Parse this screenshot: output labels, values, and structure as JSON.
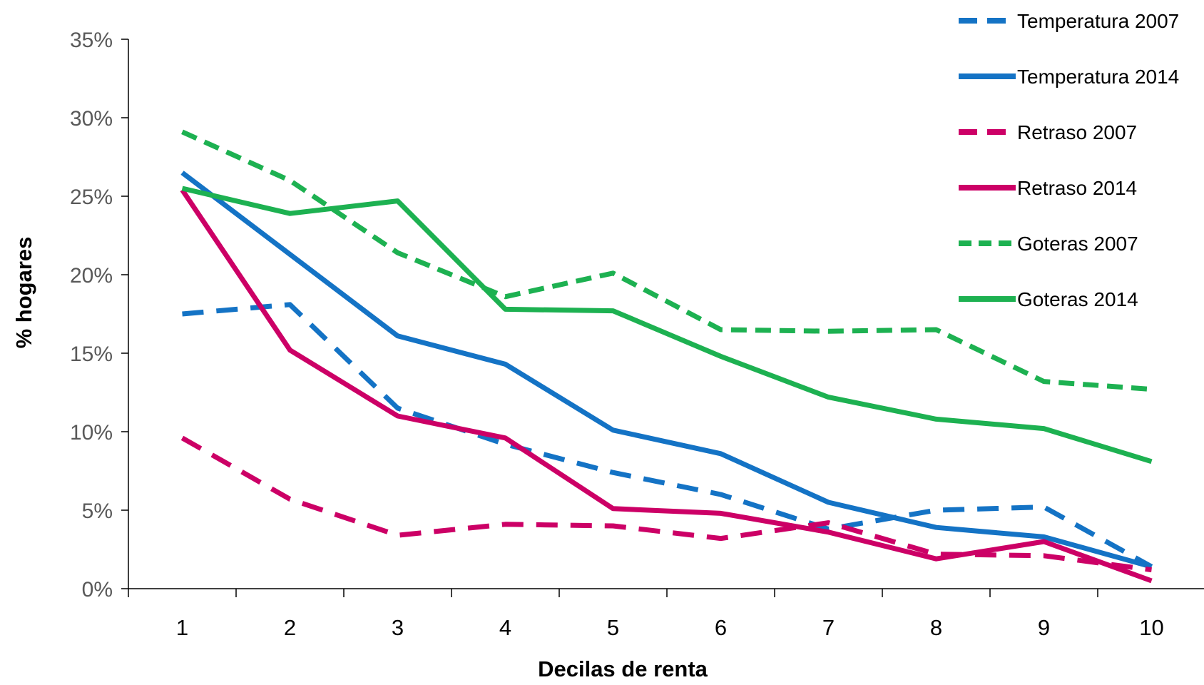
{
  "chart_data": {
    "type": "line",
    "xlabel": "Decilas de renta",
    "ylabel": "% hogares",
    "categories": [
      "1",
      "2",
      "3",
      "4",
      "5",
      "6",
      "7",
      "8",
      "9",
      "10"
    ],
    "y_ticks": [
      "0%",
      "5%",
      "10%",
      "15%",
      "20%",
      "25%",
      "30%",
      "35%"
    ],
    "ylim": [
      0,
      35
    ],
    "grid": false,
    "legend_position": "top-right",
    "series": [
      {
        "name": "Temperatura 2007",
        "color": "#1473C5",
        "style": "dashed",
        "values": [
          17.5,
          18.1,
          11.5,
          9.2,
          7.4,
          6.0,
          3.8,
          5.0,
          5.2,
          1.4
        ]
      },
      {
        "name": "Temperatura 2014",
        "color": "#1473C5",
        "style": "solid",
        "values": [
          26.5,
          21.3,
          16.1,
          14.3,
          10.1,
          8.6,
          5.5,
          3.9,
          3.3,
          1.4
        ]
      },
      {
        "name": "Retraso 2007",
        "color": "#CC0066",
        "style": "dashed",
        "values": [
          9.6,
          5.7,
          3.4,
          4.1,
          4.0,
          3.2,
          4.2,
          2.2,
          2.1,
          1.2
        ]
      },
      {
        "name": "Retraso 2014",
        "color": "#CC0066",
        "style": "solid",
        "values": [
          25.4,
          15.2,
          11.0,
          9.6,
          5.1,
          4.8,
          3.6,
          1.9,
          3.0,
          0.5
        ]
      },
      {
        "name": "Goteras 2007",
        "color": "#1DB151",
        "style": "dashed",
        "values": [
          29.1,
          26.0,
          21.4,
          18.6,
          20.1,
          16.5,
          16.4,
          16.5,
          13.2,
          12.7
        ]
      },
      {
        "name": "Goteras 2014",
        "color": "#1DB151",
        "style": "solid",
        "values": [
          25.5,
          23.9,
          24.7,
          17.8,
          17.7,
          14.8,
          12.2,
          10.8,
          10.2,
          8.1
        ]
      }
    ]
  }
}
